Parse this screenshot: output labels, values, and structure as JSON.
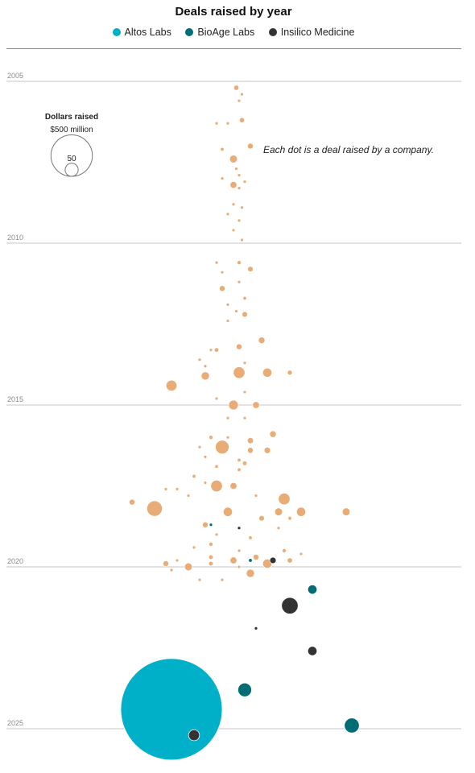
{
  "title": "Deals raised by year",
  "legend": [
    {
      "label": "Altos Labs",
      "color": "#00b0c8"
    },
    {
      "label": "BioAge Labs",
      "color": "#006d75"
    },
    {
      "label": "Insilico Medicine",
      "color": "#333333"
    }
  ],
  "annotation": "Each dot is a deal raised by a company.",
  "size_legend": {
    "title": "Dollars raised",
    "large_label": "$500 million",
    "small_label": "50",
    "large_value": 500,
    "small_value": 50
  },
  "colors": {
    "other": "#e9ac77",
    "gridline": "#8a8a8a"
  },
  "chart_data": {
    "type": "scatter",
    "title": "Deals raised by year",
    "y_axis": {
      "ticks": [
        2005,
        2010,
        2015,
        2020,
        2025
      ],
      "range": [
        2005,
        2026
      ]
    },
    "size_unit": "$ million",
    "series": [
      {
        "name": "Other",
        "color": "#e9ac77",
        "points": [
          {
            "x": 0.5,
            "y": 2005.2,
            "v": 8
          },
          {
            "x": 1.5,
            "y": 2005.4,
            "v": 1
          },
          {
            "x": 1,
            "y": 2005.6,
            "v": 1
          },
          {
            "x": 1.5,
            "y": 2006.2,
            "v": 8
          },
          {
            "x": -1,
            "y": 2006.3,
            "v": 3
          },
          {
            "x": -3,
            "y": 2006.3,
            "v": 0.5
          },
          {
            "x": -2,
            "y": 2007.1,
            "v": 4
          },
          {
            "x": 3,
            "y": 2007.0,
            "v": 10
          },
          {
            "x": 0,
            "y": 2007.4,
            "v": 18
          },
          {
            "x": 0.5,
            "y": 2007.7,
            "v": 1
          },
          {
            "x": 1,
            "y": 2007.9,
            "v": 1
          },
          {
            "x": -2,
            "y": 2008.0,
            "v": 1
          },
          {
            "x": 0,
            "y": 2008.2,
            "v": 14
          },
          {
            "x": 2,
            "y": 2008.1,
            "v": 1
          },
          {
            "x": 1,
            "y": 2008.3,
            "v": 1
          },
          {
            "x": 0,
            "y": 2008.8,
            "v": 1
          },
          {
            "x": 1.5,
            "y": 2008.9,
            "v": 2
          },
          {
            "x": -1,
            "y": 2009.1,
            "v": 1
          },
          {
            "x": 1,
            "y": 2009.3,
            "v": 1
          },
          {
            "x": 0,
            "y": 2009.6,
            "v": 1
          },
          {
            "x": 1.5,
            "y": 2009.9,
            "v": 1
          },
          {
            "x": -3,
            "y": 2010.6,
            "v": 2
          },
          {
            "x": 1,
            "y": 2010.6,
            "v": 5
          },
          {
            "x": 3,
            "y": 2010.8,
            "v": 9
          },
          {
            "x": -2,
            "y": 2010.9,
            "v": 1
          },
          {
            "x": 1,
            "y": 2011.2,
            "v": 3
          },
          {
            "x": -2,
            "y": 2011.4,
            "v": 10
          },
          {
            "x": 2,
            "y": 2011.7,
            "v": 4
          },
          {
            "x": -1,
            "y": 2011.9,
            "v": 2
          },
          {
            "x": 0.5,
            "y": 2012.1,
            "v": 2
          },
          {
            "x": 2,
            "y": 2012.2,
            "v": 9
          },
          {
            "x": -1,
            "y": 2012.4,
            "v": 1
          },
          {
            "x": 5,
            "y": 2013.0,
            "v": 13
          },
          {
            "x": 1,
            "y": 2013.2,
            "v": 10
          },
          {
            "x": -3,
            "y": 2013.3,
            "v": 6
          },
          {
            "x": -4,
            "y": 2013.3,
            "v": 2
          },
          {
            "x": -6,
            "y": 2013.6,
            "v": 2
          },
          {
            "x": -5,
            "y": 2013.8,
            "v": 1
          },
          {
            "x": 2,
            "y": 2013.7,
            "v": 1
          },
          {
            "x": 1,
            "y": 2014.0,
            "v": 40
          },
          {
            "x": -5,
            "y": 2014.1,
            "v": 20
          },
          {
            "x": 6,
            "y": 2014.0,
            "v": 25
          },
          {
            "x": 10,
            "y": 2014.0,
            "v": 7
          },
          {
            "x": -11,
            "y": 2014.4,
            "v": 35
          },
          {
            "x": 2,
            "y": 2014.6,
            "v": 3
          },
          {
            "x": -3,
            "y": 2014.8,
            "v": 3
          },
          {
            "x": 0,
            "y": 2015.0,
            "v": 28
          },
          {
            "x": 4,
            "y": 2015.0,
            "v": 14
          },
          {
            "x": 2,
            "y": 2015.4,
            "v": 1
          },
          {
            "x": -1,
            "y": 2015.4,
            "v": 2
          },
          {
            "x": -4,
            "y": 2016.0,
            "v": 5
          },
          {
            "x": -1,
            "y": 2016.0,
            "v": 1
          },
          {
            "x": 3,
            "y": 2016.1,
            "v": 11
          },
          {
            "x": 7,
            "y": 2015.9,
            "v": 13
          },
          {
            "x": -6,
            "y": 2016.3,
            "v": 3
          },
          {
            "x": -2,
            "y": 2016.3,
            "v": 55
          },
          {
            "x": 3,
            "y": 2016.4,
            "v": 10
          },
          {
            "x": 6,
            "y": 2016.4,
            "v": 12
          },
          {
            "x": -5,
            "y": 2016.6,
            "v": 3
          },
          {
            "x": 1,
            "y": 2016.7,
            "v": 4
          },
          {
            "x": 2,
            "y": 2016.8,
            "v": 6
          },
          {
            "x": -3,
            "y": 2016.9,
            "v": 4
          },
          {
            "x": 1,
            "y": 2017.0,
            "v": 4
          },
          {
            "x": -7,
            "y": 2017.2,
            "v": 4
          },
          {
            "x": -5,
            "y": 2017.4,
            "v": 2
          },
          {
            "x": -3,
            "y": 2017.5,
            "v": 40
          },
          {
            "x": 0,
            "y": 2017.5,
            "v": 14
          },
          {
            "x": -12,
            "y": 2017.6,
            "v": 1
          },
          {
            "x": -10,
            "y": 2017.6,
            "v": 3
          },
          {
            "x": -8,
            "y": 2017.8,
            "v": 2
          },
          {
            "x": 4,
            "y": 2017.8,
            "v": 2
          },
          {
            "x": 9,
            "y": 2017.9,
            "v": 40
          },
          {
            "x": -18,
            "y": 2018.0,
            "v": 10
          },
          {
            "x": -14,
            "y": 2018.2,
            "v": 70
          },
          {
            "x": -1,
            "y": 2018.3,
            "v": 25
          },
          {
            "x": 8,
            "y": 2018.3,
            "v": 18
          },
          {
            "x": 10,
            "y": 2018.5,
            "v": 4
          },
          {
            "x": 12,
            "y": 2018.3,
            "v": 25
          },
          {
            "x": 5,
            "y": 2018.5,
            "v": 9
          },
          {
            "x": 20,
            "y": 2018.3,
            "v": 18
          },
          {
            "x": -5,
            "y": 2018.7,
            "v": 10
          },
          {
            "x": 8,
            "y": 2018.8,
            "v": 2
          },
          {
            "x": -3,
            "y": 2019.0,
            "v": 3
          },
          {
            "x": 3,
            "y": 2019.1,
            "v": 4
          },
          {
            "x": -4,
            "y": 2019.3,
            "v": 5
          },
          {
            "x": -7,
            "y": 2019.4,
            "v": 3
          },
          {
            "x": 1,
            "y": 2019.5,
            "v": 1
          },
          {
            "x": -10,
            "y": 2019.8,
            "v": 2
          },
          {
            "x": -4,
            "y": 2019.7,
            "v": 6
          },
          {
            "x": 0,
            "y": 2019.8,
            "v": 14
          },
          {
            "x": 4,
            "y": 2019.7,
            "v": 10
          },
          {
            "x": 10,
            "y": 2019.8,
            "v": 8
          },
          {
            "x": 9,
            "y": 2019.5,
            "v": 5
          },
          {
            "x": 12,
            "y": 2019.6,
            "v": 1
          },
          {
            "x": 6,
            "y": 2019.9,
            "v": 25
          },
          {
            "x": -12,
            "y": 2019.9,
            "v": 10
          },
          {
            "x": -11,
            "y": 2020.1,
            "v": 3
          },
          {
            "x": -8,
            "y": 2020.0,
            "v": 18
          },
          {
            "x": -4,
            "y": 2019.9,
            "v": 6
          },
          {
            "x": 1,
            "y": 2020.0,
            "v": 3
          },
          {
            "x": 3,
            "y": 2020.2,
            "v": 20
          },
          {
            "x": -2,
            "y": 2020.4,
            "v": 3
          },
          {
            "x": -6,
            "y": 2020.4,
            "v": 2
          }
        ]
      },
      {
        "name": "Altos Labs",
        "color": "#00b0c8",
        "points": [
          {
            "x": -11,
            "y": 2024.4,
            "v": 3000
          }
        ]
      },
      {
        "name": "BioAge Labs",
        "color": "#006d75",
        "points": [
          {
            "x": -4,
            "y": 2018.7,
            "v": 2
          },
          {
            "x": 3,
            "y": 2019.8,
            "v": 4
          },
          {
            "x": 14,
            "y": 2020.7,
            "v": 25
          },
          {
            "x": 2,
            "y": 2023.8,
            "v": 55
          },
          {
            "x": 21,
            "y": 2024.9,
            "v": 65
          }
        ]
      },
      {
        "name": "Insilico Medicine",
        "color": "#333333",
        "points": [
          {
            "x": 1,
            "y": 2018.8,
            "v": 0.5
          },
          {
            "x": 7,
            "y": 2019.8,
            "v": 12
          },
          {
            "x": 10,
            "y": 2021.2,
            "v": 80
          },
          {
            "x": 4,
            "y": 2021.9,
            "v": 1
          },
          {
            "x": 14,
            "y": 2022.6,
            "v": 25
          },
          {
            "x": -7,
            "y": 2025.2,
            "v": 35
          }
        ]
      }
    ]
  }
}
